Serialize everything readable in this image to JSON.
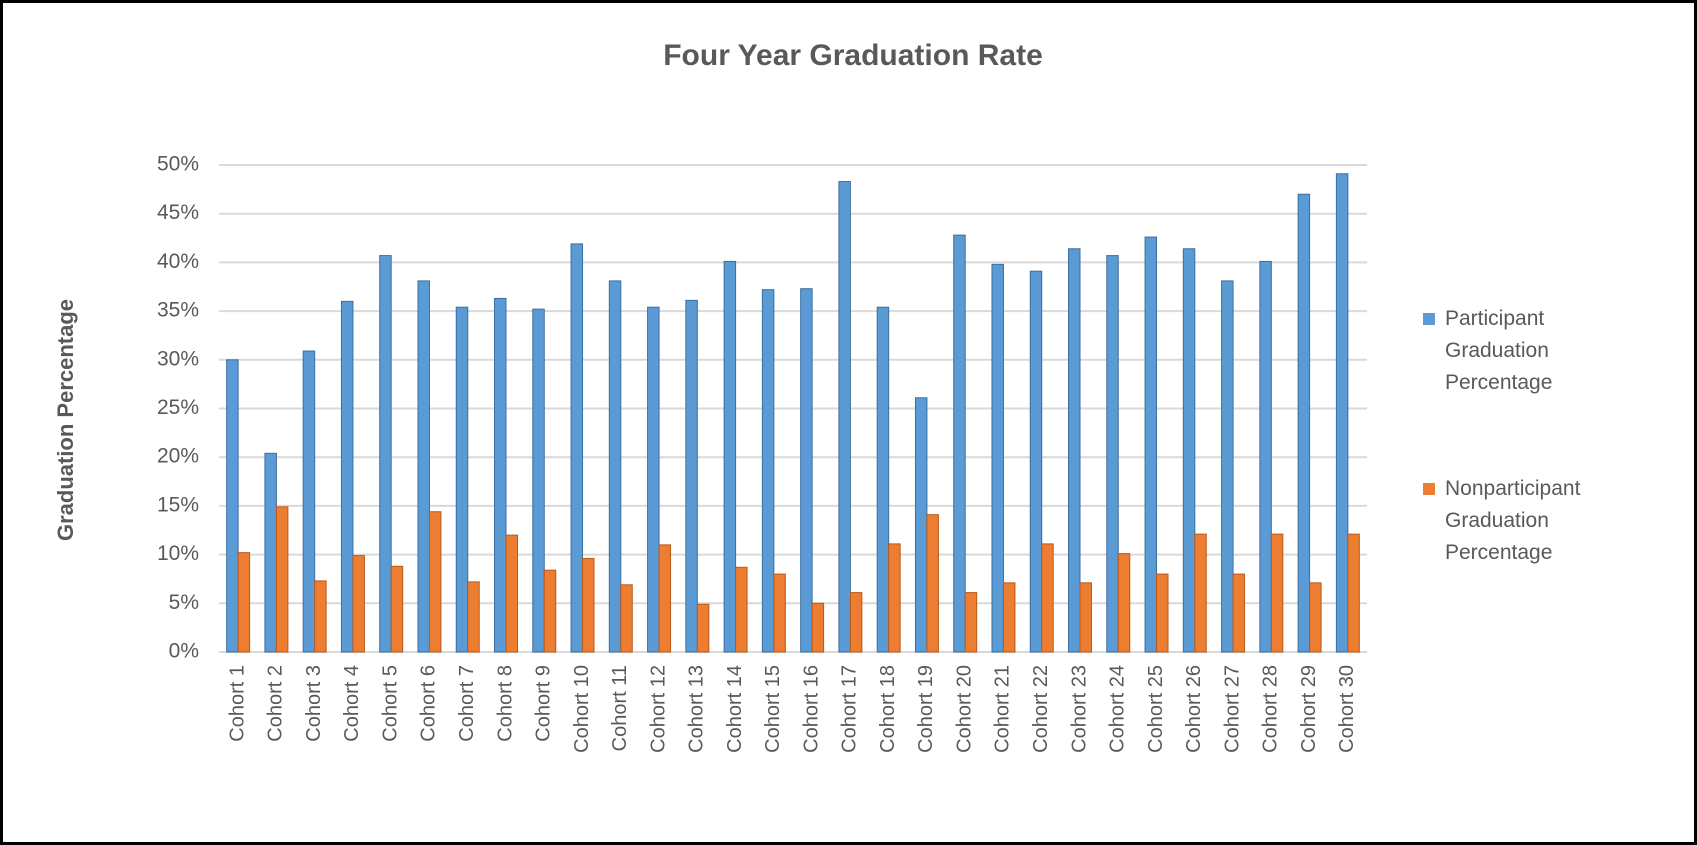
{
  "chart_data": {
    "type": "bar",
    "title": "Four Year Graduation Rate",
    "y_label": "Graduation Percentage",
    "categories": [
      "Cohort 1",
      "Cohort 2",
      "Cohort 3",
      "Cohort 4",
      "Cohort 5",
      "Cohort 6",
      "Cohort 7",
      "Cohort 8",
      "Cohort 9",
      "Cohort 10",
      "Cohort 11",
      "Cohort 12",
      "Cohort 13",
      "Cohort 14",
      "Cohort 15",
      "Cohort 16",
      "Cohort 17",
      "Cohort 18",
      "Cohort 19",
      "Cohort 20",
      "Cohort 21",
      "Cohort 22",
      "Cohort 23",
      "Cohort 24",
      "Cohort 25",
      "Cohort 26",
      "Cohort 27",
      "Cohort 28",
      "Cohort 29",
      "Cohort 30"
    ],
    "series": [
      {
        "name": "Participant Graduation Percentage",
        "color": "#5b9bd5",
        "values": [
          30.0,
          20.4,
          30.9,
          36.0,
          40.7,
          38.1,
          35.4,
          36.3,
          35.2,
          41.9,
          38.1,
          35.4,
          36.1,
          40.1,
          37.2,
          37.3,
          48.3,
          35.4,
          26.1,
          42.8,
          39.8,
          39.1,
          41.4,
          40.7,
          42.6,
          41.4,
          38.1,
          40.1,
          47.0,
          49.1
        ]
      },
      {
        "name": "Nonparticipant Graduation Percentage",
        "color": "#ed7d31",
        "values": [
          10.2,
          14.9,
          7.3,
          9.9,
          8.8,
          14.4,
          7.2,
          12.0,
          8.4,
          9.6,
          6.9,
          11.0,
          4.9,
          8.7,
          8.0,
          5.0,
          6.1,
          11.1,
          14.1,
          6.1,
          7.1,
          11.1,
          7.1,
          10.1,
          8.0,
          12.1,
          8.0,
          12.1,
          7.1,
          12.1
        ]
      }
    ],
    "ylim": [
      0,
      50
    ],
    "yticks": [
      {
        "value": 0,
        "label": "0%"
      },
      {
        "value": 5,
        "label": "5%"
      },
      {
        "value": 10,
        "label": "10%"
      },
      {
        "value": 15,
        "label": "15%"
      },
      {
        "value": 20,
        "label": "20%"
      },
      {
        "value": 25,
        "label": "25%"
      },
      {
        "value": 30,
        "label": "30%"
      },
      {
        "value": 35,
        "label": "35%"
      },
      {
        "value": 40,
        "label": "40%"
      },
      {
        "value": 45,
        "label": "45%"
      },
      {
        "value": 50,
        "label": "50%"
      }
    ],
    "grid": true,
    "legend": "right"
  }
}
